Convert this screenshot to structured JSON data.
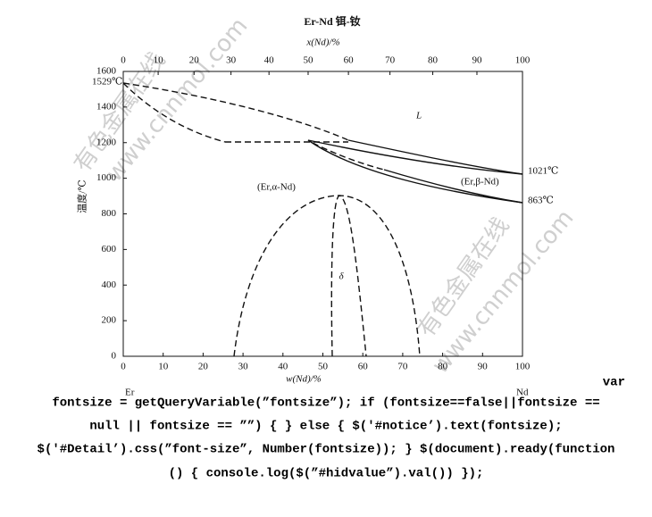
{
  "figure": {
    "title": "Er-Nd  铒-钕",
    "top_axis": {
      "label": "x(Nd)/%",
      "ticks": [
        0,
        10,
        20,
        30,
        40,
        50,
        60,
        70,
        80,
        90,
        100
      ]
    },
    "bottom_axis": {
      "label": "w(Nd)/%",
      "ticks": [
        0,
        10,
        20,
        30,
        40,
        50,
        60,
        70,
        80,
        90,
        100
      ]
    },
    "y_axis": {
      "label": "温度/℃",
      "ticks": [
        0,
        200,
        400,
        600,
        800,
        1000,
        1200,
        1400,
        1600
      ]
    },
    "left_element": "Er",
    "right_element": "Nd",
    "points": {
      "er_melt": "1529℃",
      "nd_melt": "1021℃",
      "nd_transition": "863℃"
    },
    "regions": {
      "liquid": "L",
      "alpha": "(Er,α-Nd)",
      "beta": "(Er,β-Nd)",
      "delta": "δ"
    }
  },
  "watermarks": [
    "有色金属在线",
    "www.cnnmol.com",
    "有色金属在线",
    "www.cnnmol.com"
  ],
  "code_text": [
    "var",
    "fontsize = getQueryVariable(”fontsize”); if (fontsize==false||fontsize ==",
    "null || fontsize == ””) { } else { $('#notice’).text(fontsize);",
    "$('#Detail’).css(”font-size”, Number(fontsize)); } $(document).ready(function",
    "() { console.log($(”#hidvalue”).val()) });"
  ]
}
